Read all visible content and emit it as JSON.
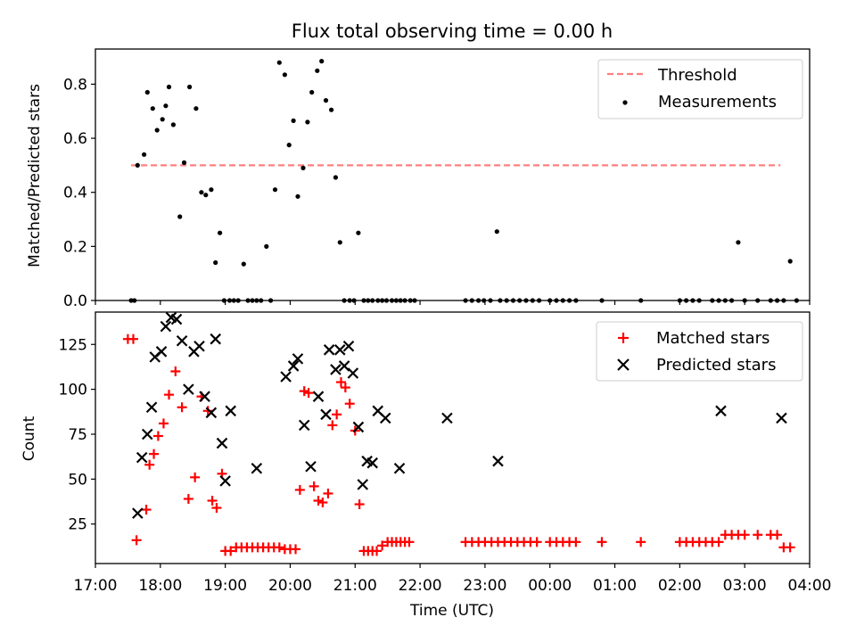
{
  "chart_data": [
    {
      "type": "scatter",
      "title": "Flux total observing time = 0.00 h",
      "xlabel": "",
      "ylabel": "Matched/Predicted stars",
      "xlim": [
        "17:00",
        "04:00"
      ],
      "ylim": [
        0,
        0.93
      ],
      "yticks": [
        0.0,
        0.2,
        0.4,
        0.6,
        0.8
      ],
      "ytick_labels": [
        "0.0",
        "0.2",
        "0.4",
        "0.6",
        "0.8"
      ],
      "legend": {
        "placement": "upper-right",
        "entries": [
          "Threshold",
          "Measurements"
        ]
      },
      "threshold": {
        "name": "Threshold",
        "y": 0.5,
        "x_start": "17:33",
        "x_end": "03:33",
        "color": "#ff7f7f",
        "style": "dashed"
      },
      "series": [
        {
          "name": "Measurements",
          "color": "#000000",
          "marker": "dot",
          "x": [
            "17:33",
            "17:36",
            "17:39",
            "17:45",
            "17:48",
            "17:53",
            "17:57",
            "18:02",
            "18:05",
            "18:08",
            "18:12",
            "18:18",
            "18:22",
            "18:27",
            "18:33",
            "18:38",
            "18:42",
            "18:47",
            "18:51",
            "18:55",
            "18:59",
            "19:04",
            "19:08",
            "19:12",
            "19:17",
            "19:21",
            "19:25",
            "19:29",
            "19:33",
            "19:38",
            "19:42",
            "19:46",
            "19:50",
            "19:55",
            "19:59",
            "20:03",
            "20:07",
            "20:12",
            "20:16",
            "20:20",
            "20:25",
            "20:29",
            "20:33",
            "20:38",
            "20:42",
            "20:46",
            "20:50",
            "20:55",
            "20:59",
            "21:03",
            "21:08",
            "21:12",
            "21:16",
            "21:21",
            "21:25",
            "21:29",
            "21:34",
            "21:38",
            "21:42",
            "21:46",
            "21:51",
            "21:55",
            "22:42",
            "22:48",
            "22:54",
            "22:59",
            "23:05",
            "23:11",
            "23:14",
            "23:20",
            "23:26",
            "23:32",
            "23:38",
            "23:44",
            "23:50",
            "24:00",
            "24:06",
            "24:12",
            "24:18",
            "24:24",
            "24:48",
            "25:24",
            "26:00",
            "26:06",
            "26:12",
            "26:18",
            "26:30",
            "26:36",
            "26:42",
            "26:48",
            "26:54",
            "27:00",
            "27:12",
            "27:24",
            "27:30",
            "27:36",
            "27:42",
            "27:48"
          ],
          "y": [
            0.0,
            0.0,
            0.5,
            0.54,
            0.77,
            0.71,
            0.63,
            0.67,
            0.72,
            0.79,
            0.65,
            0.31,
            0.51,
            0.79,
            0.71,
            0.4,
            0.39,
            0.41,
            0.14,
            0.25,
            0.0,
            0.0,
            0.0,
            0.0,
            0.135,
            0.0,
            0.0,
            0.0,
            0.0,
            0.2,
            0.0,
            0.41,
            0.88,
            0.835,
            0.575,
            0.665,
            0.385,
            0.49,
            0.66,
            0.77,
            0.85,
            0.885,
            0.74,
            0.705,
            0.455,
            0.215,
            0.0,
            0.0,
            0.0,
            0.25,
            0.0,
            0.0,
            0.0,
            0.0,
            0.0,
            0.0,
            0.0,
            0.0,
            0.0,
            0.0,
            0.0,
            0.0,
            0.0,
            0.0,
            0.0,
            0.0,
            0.0,
            0.255,
            0.0,
            0.0,
            0.0,
            0.0,
            0.0,
            0.0,
            0.0,
            0.0,
            0.0,
            0.0,
            0.0,
            0.0,
            0.0,
            0.0,
            0.0,
            0.0,
            0.0,
            0.0,
            0.0,
            0.0,
            0.0,
            0.0,
            0.215,
            0.0,
            0.0,
            0.0,
            0.0,
            0.0,
            0.145,
            0.0
          ]
        }
      ]
    },
    {
      "type": "scatter",
      "title": "",
      "xlabel": "Time (UTC)",
      "ylabel": "Count",
      "xlim": [
        "17:00",
        "04:00"
      ],
      "xticks": [
        "17:00",
        "18:00",
        "19:00",
        "20:00",
        "21:00",
        "22:00",
        "23:00",
        "00:00",
        "01:00",
        "02:00",
        "03:00",
        "04:00"
      ],
      "ylim": [
        3,
        143
      ],
      "yticks": [
        25,
        50,
        75,
        100,
        125
      ],
      "ytick_labels": [
        "25",
        "50",
        "75",
        "100",
        "125"
      ],
      "legend": {
        "placement": "upper-right",
        "entries": [
          "Matched stars",
          "Predicted stars"
        ]
      },
      "series": [
        {
          "name": "Matched stars",
          "color": "#ff0000",
          "marker": "plus",
          "x": [
            "17:30",
            "17:35",
            "17:38",
            "17:47",
            "17:50",
            "17:54",
            "17:58",
            "18:03",
            "18:08",
            "18:14",
            "18:20",
            "18:26",
            "18:32",
            "18:38",
            "18:44",
            "18:48",
            "18:52",
            "18:57",
            "19:00",
            "19:05",
            "19:10",
            "19:15",
            "19:20",
            "19:25",
            "19:30",
            "19:35",
            "19:40",
            "19:45",
            "19:50",
            "19:55",
            "20:00",
            "20:05",
            "20:09",
            "20:13",
            "20:17",
            "20:22",
            "20:26",
            "20:30",
            "20:35",
            "20:39",
            "20:43",
            "20:47",
            "20:51",
            "20:55",
            "21:00",
            "21:04",
            "21:08",
            "21:12",
            "21:16",
            "21:20",
            "21:25",
            "21:30",
            "21:34",
            "21:38",
            "21:42",
            "21:46",
            "21:50",
            "22:42",
            "22:48",
            "22:54",
            "23:00",
            "23:06",
            "23:12",
            "23:18",
            "23:24",
            "23:30",
            "23:36",
            "23:42",
            "23:48",
            "24:00",
            "24:06",
            "24:12",
            "24:18",
            "24:24",
            "24:48",
            "25:24",
            "26:00",
            "26:06",
            "26:12",
            "26:18",
            "26:24",
            "26:30",
            "26:36",
            "26:42",
            "26:48",
            "26:54",
            "27:00",
            "27:12",
            "27:24",
            "27:30",
            "27:36",
            "27:42"
          ],
          "y": [
            128,
            128,
            16,
            33,
            58,
            64,
            74,
            81,
            97,
            110,
            90,
            39,
            51,
            96,
            88,
            38,
            34,
            53,
            10,
            10,
            12,
            12,
            12,
            12,
            12,
            12,
            12,
            12,
            12,
            11,
            11,
            11,
            44,
            99,
            98,
            46,
            38,
            37,
            42,
            80,
            86,
            104,
            101,
            92,
            77,
            36,
            10,
            10,
            10,
            10,
            13,
            15,
            15,
            15,
            15,
            15,
            15,
            15,
            15,
            15,
            15,
            15,
            15,
            15,
            15,
            15,
            15,
            15,
            15,
            15,
            15,
            15,
            15,
            15,
            15,
            15,
            15,
            15,
            15,
            15,
            15,
            15,
            15,
            19,
            19,
            19,
            19,
            19,
            19,
            19,
            12,
            12
          ]
        },
        {
          "name": "Predicted stars",
          "color": "#000000",
          "marker": "x",
          "x": [
            "17:39",
            "17:43",
            "17:48",
            "17:52",
            "17:55",
            "18:01",
            "18:05",
            "18:10",
            "18:15",
            "18:20",
            "18:26",
            "18:31",
            "18:36",
            "18:41",
            "18:47",
            "18:51",
            "18:57",
            "19:00",
            "19:05",
            "19:29",
            "19:56",
            "20:03",
            "20:07",
            "20:13",
            "20:19",
            "20:26",
            "20:33",
            "20:36",
            "20:42",
            "20:46",
            "20:50",
            "20:54",
            "20:58",
            "21:03",
            "21:07",
            "21:11",
            "21:16",
            "21:21",
            "21:28",
            "21:41",
            "22:25",
            "23:12",
            "26:38",
            "27:34"
          ],
          "y": [
            31,
            62,
            75,
            90,
            118,
            121,
            135,
            140,
            139,
            127,
            100,
            121,
            124,
            96,
            87,
            128,
            70,
            49,
            88,
            56,
            107,
            113,
            117,
            80,
            57,
            96,
            86,
            122,
            111,
            122,
            113,
            124,
            109,
            79,
            47,
            60,
            59,
            88,
            84,
            56,
            84,
            60,
            88,
            84
          ]
        }
      ]
    }
  ]
}
